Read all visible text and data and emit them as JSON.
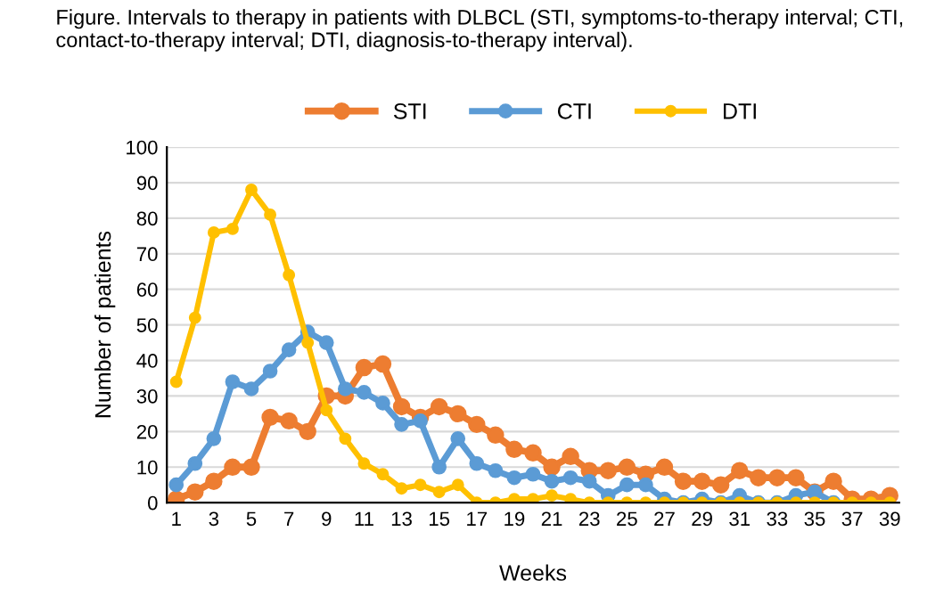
{
  "chart_data": {
    "type": "line",
    "title": "Figure. Intervals to therapy in patients with DLBCL (STI, symptoms-to-therapy interval; CTI, contact-to-therapy interval; DTI, diagnosis-to-therapy interval).",
    "xlabel": "Weeks",
    "ylabel": "Number of patients",
    "categories": [
      "1",
      null,
      "3",
      null,
      "5",
      null,
      "7",
      null,
      "9",
      null,
      "11",
      null,
      "13",
      null,
      "15",
      null,
      "17",
      null,
      "19",
      null,
      "21",
      null,
      "23",
      null,
      "25",
      null,
      "27",
      null,
      "29",
      null,
      "31",
      null,
      "33",
      null,
      "35",
      null,
      "37",
      null,
      "39"
    ],
    "series": [
      {
        "name": "STI",
        "color": "#ed7d31",
        "values": [
          1,
          3,
          6,
          10,
          10,
          24,
          23,
          20,
          30,
          30,
          38,
          39,
          27,
          24,
          27,
          25,
          22,
          19,
          15,
          14,
          10,
          13,
          9,
          9,
          10,
          8,
          10,
          6,
          6,
          5,
          9,
          7,
          7,
          7,
          3,
          6,
          1,
          1,
          2
        ]
      },
      {
        "name": "CTI",
        "color": "#5b9bd5",
        "values": [
          5,
          11,
          18,
          34,
          32,
          37,
          43,
          48,
          45,
          32,
          31,
          28,
          22,
          23,
          10,
          18,
          11,
          9,
          7,
          8,
          6,
          7,
          6,
          2,
          5,
          5,
          1,
          0,
          1,
          0,
          2,
          0,
          0,
          2,
          3,
          0,
          null,
          null,
          null
        ]
      },
      {
        "name": "DTI",
        "color": "#ffc000",
        "values": [
          34,
          52,
          76,
          77,
          88,
          81,
          64,
          45,
          26,
          18,
          11,
          8,
          4,
          5,
          3,
          5,
          0,
          0,
          1,
          1,
          2,
          1,
          0,
          0,
          0,
          0,
          0,
          0,
          0,
          0,
          0,
          0,
          0,
          0,
          0,
          0,
          0,
          0,
          0
        ]
      }
    ],
    "ylim": [
      0,
      100
    ],
    "yticks": [
      0,
      10,
      20,
      30,
      40,
      50,
      60,
      70,
      80,
      90,
      100
    ],
    "grid": "y",
    "legend": "top",
    "marker": "circle",
    "line_style": "solid"
  }
}
